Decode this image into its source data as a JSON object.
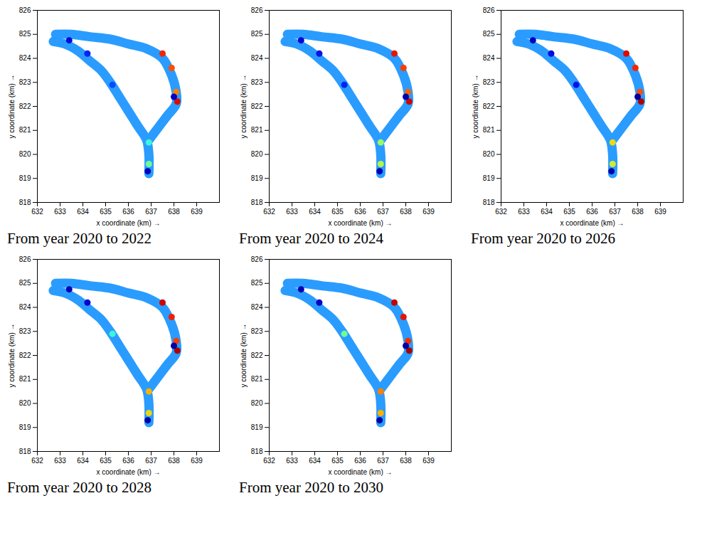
{
  "chart_data": [
    {
      "type": "heatmap",
      "title": "From year 2020 to 2022",
      "xlabel": "x coordinate (km) →",
      "ylabel": "y coordinate (km) →",
      "xlim": [
        632,
        640
      ],
      "ylim": [
        818,
        826
      ],
      "xticks": [
        632,
        633,
        634,
        635,
        636,
        637,
        638,
        639
      ],
      "yticks": [
        818,
        819,
        820,
        821,
        822,
        823,
        824,
        825,
        826
      ],
      "color_range": [
        0,
        1
      ],
      "channels": [
        {
          "x": [
            632.7,
            633.2,
            633.8,
            634.3,
            634.8,
            635.2,
            635.6,
            636.0,
            636.4,
            636.8,
            636.9,
            636.9
          ],
          "y": [
            824.7,
            824.6,
            824.3,
            823.9,
            823.5,
            823.0,
            822.4,
            821.8,
            821.2,
            820.6,
            820.0,
            819.2
          ],
          "value": 0.3
        },
        {
          "x": [
            632.8,
            633.5,
            634.3,
            635.2,
            636.0,
            636.8,
            637.5,
            637.9,
            638.1,
            638.1,
            637.7,
            637.3,
            636.9
          ],
          "y": [
            825.0,
            825.0,
            824.9,
            824.8,
            824.6,
            824.4,
            824.0,
            823.3,
            822.6,
            822.1,
            821.6,
            821.1,
            820.6
          ],
          "value": 0.3
        }
      ],
      "cells": {
        "x": [
          637.5,
          637.9,
          638.1,
          638.15,
          638.0,
          633.4,
          634.2,
          636.9,
          636.9,
          636.85,
          635.3
        ],
        "y": [
          824.2,
          823.6,
          822.6,
          822.2,
          822.4,
          824.75,
          824.2,
          820.5,
          819.6,
          819.3,
          822.9
        ],
        "values": [
          0.85,
          0.8,
          0.75,
          0.9,
          0.05,
          0.1,
          0.15,
          0.5,
          0.55,
          0.05,
          0.2
        ]
      }
    },
    {
      "type": "heatmap",
      "title": "From year 2020 to 2024",
      "xlabel": "x coordinate (km) →",
      "ylabel": "y coordinate (km) →",
      "xlim": [
        632,
        640
      ],
      "ylim": [
        818,
        826
      ],
      "xticks": [
        632,
        633,
        634,
        635,
        636,
        637,
        638,
        639
      ],
      "yticks": [
        818,
        819,
        820,
        821,
        822,
        823,
        824,
        825,
        826
      ],
      "color_range": [
        0,
        1
      ],
      "channels": [
        {
          "x": [
            632.7,
            633.2,
            633.8,
            634.3,
            634.8,
            635.2,
            635.6,
            636.0,
            636.4,
            636.8,
            636.9,
            636.9
          ],
          "y": [
            824.7,
            824.6,
            824.3,
            823.9,
            823.5,
            823.0,
            822.4,
            821.8,
            821.2,
            820.6,
            820.0,
            819.2
          ],
          "value": 0.3
        },
        {
          "x": [
            632.8,
            633.5,
            634.3,
            635.2,
            636.0,
            636.8,
            637.5,
            637.9,
            638.1,
            638.1,
            637.7,
            637.3,
            636.9
          ],
          "y": [
            825.0,
            825.0,
            824.9,
            824.8,
            824.6,
            824.4,
            824.0,
            823.3,
            822.6,
            822.1,
            821.6,
            821.1,
            820.6
          ],
          "value": 0.3
        }
      ],
      "cells": {
        "x": [
          637.5,
          637.9,
          638.1,
          638.15,
          638.0,
          633.4,
          634.2,
          636.9,
          636.9,
          636.85,
          635.3
        ],
        "y": [
          824.2,
          823.6,
          822.6,
          822.2,
          822.4,
          824.75,
          824.2,
          820.5,
          819.6,
          819.3,
          822.9
        ],
        "values": [
          0.88,
          0.82,
          0.78,
          0.92,
          0.03,
          0.08,
          0.12,
          0.58,
          0.6,
          0.04,
          0.15
        ]
      }
    },
    {
      "type": "heatmap",
      "title": "From year 2020 to 2026",
      "xlabel": "x coordinate (km) →",
      "ylabel": "y coordinate (km) →",
      "xlim": [
        632,
        640
      ],
      "ylim": [
        818,
        826
      ],
      "xticks": [
        632,
        633,
        634,
        635,
        636,
        637,
        638,
        639
      ],
      "yticks": [
        818,
        819,
        820,
        821,
        822,
        823,
        824,
        825,
        826
      ],
      "color_range": [
        0,
        1
      ],
      "channels": [
        {
          "x": [
            632.7,
            633.2,
            633.8,
            634.3,
            634.8,
            635.2,
            635.6,
            636.0,
            636.4,
            636.8,
            636.9,
            636.9
          ],
          "y": [
            824.7,
            824.6,
            824.3,
            823.9,
            823.5,
            823.0,
            822.4,
            821.8,
            821.2,
            820.6,
            820.0,
            819.2
          ],
          "value": 0.3
        },
        {
          "x": [
            632.8,
            633.5,
            634.3,
            635.2,
            636.0,
            636.8,
            637.5,
            637.9,
            638.1,
            638.1,
            637.7,
            637.3,
            636.9
          ],
          "y": [
            825.0,
            825.0,
            824.9,
            824.8,
            824.6,
            824.4,
            824.0,
            823.3,
            822.6,
            822.1,
            821.6,
            821.1,
            820.6
          ],
          "value": 0.3
        }
      ],
      "cells": {
        "x": [
          637.5,
          637.9,
          638.1,
          638.15,
          638.0,
          633.4,
          634.2,
          636.9,
          636.9,
          636.85,
          635.3
        ],
        "y": [
          824.2,
          823.6,
          822.6,
          822.2,
          822.4,
          824.75,
          824.2,
          820.5,
          819.6,
          819.3,
          822.9
        ],
        "values": [
          0.9,
          0.85,
          0.8,
          0.95,
          0.02,
          0.06,
          0.1,
          0.65,
          0.62,
          0.03,
          0.12
        ]
      }
    },
    {
      "type": "heatmap",
      "title": "From year 2020 to 2028",
      "xlabel": "x coordinate (km) →",
      "ylabel": "y coordinate (km) →",
      "xlim": [
        632,
        640
      ],
      "ylim": [
        818,
        826
      ],
      "xticks": [
        632,
        633,
        634,
        635,
        636,
        637,
        638,
        639
      ],
      "yticks": [
        818,
        819,
        820,
        821,
        822,
        823,
        824,
        825,
        826
      ],
      "color_range": [
        0,
        1
      ],
      "channels": [
        {
          "x": [
            632.7,
            633.2,
            633.8,
            634.3,
            634.8,
            635.2,
            635.6,
            636.0,
            636.4,
            636.8,
            636.9,
            636.9
          ],
          "y": [
            824.7,
            824.6,
            824.3,
            823.9,
            823.5,
            823.0,
            822.4,
            821.8,
            821.2,
            820.6,
            820.0,
            819.2
          ],
          "value": 0.3
        },
        {
          "x": [
            632.8,
            633.5,
            634.3,
            635.2,
            636.0,
            636.8,
            637.5,
            637.9,
            638.1,
            638.1,
            637.7,
            637.3,
            636.9
          ],
          "y": [
            825.0,
            825.0,
            824.9,
            824.8,
            824.6,
            824.4,
            824.0,
            823.3,
            822.6,
            822.1,
            821.6,
            821.1,
            820.6
          ],
          "value": 0.3
        }
      ],
      "cells": {
        "x": [
          637.5,
          637.9,
          638.1,
          638.15,
          638.0,
          633.4,
          634.2,
          636.9,
          636.9,
          636.85,
          635.3
        ],
        "y": [
          824.2,
          823.6,
          822.6,
          822.2,
          822.4,
          824.75,
          824.2,
          820.5,
          819.6,
          819.3,
          822.9
        ],
        "values": [
          0.92,
          0.86,
          0.82,
          0.95,
          0.02,
          0.05,
          0.08,
          0.7,
          0.66,
          0.02,
          0.5
        ]
      }
    },
    {
      "type": "heatmap",
      "title": "From year 2020 to 2030",
      "xlabel": "x coordinate (km) →",
      "ylabel": "y coordinate (km) →",
      "xlim": [
        632,
        640
      ],
      "ylim": [
        818,
        826
      ],
      "xticks": [
        632,
        633,
        634,
        635,
        636,
        637,
        638,
        639
      ],
      "yticks": [
        818,
        819,
        820,
        821,
        822,
        823,
        824,
        825,
        826
      ],
      "color_range": [
        0,
        1
      ],
      "channels": [
        {
          "x": [
            632.7,
            633.2,
            633.8,
            634.3,
            634.8,
            635.2,
            635.6,
            636.0,
            636.4,
            636.8,
            636.9,
            636.9
          ],
          "y": [
            824.7,
            824.6,
            824.3,
            823.9,
            823.5,
            823.0,
            822.4,
            821.8,
            821.2,
            820.6,
            820.0,
            819.2
          ],
          "value": 0.3
        },
        {
          "x": [
            632.8,
            633.5,
            634.3,
            635.2,
            636.0,
            636.8,
            637.5,
            637.9,
            638.1,
            638.1,
            637.7,
            637.3,
            636.9
          ],
          "y": [
            825.0,
            825.0,
            824.9,
            824.8,
            824.6,
            824.4,
            824.0,
            823.3,
            822.6,
            822.1,
            821.6,
            821.1,
            820.6
          ],
          "value": 0.3
        }
      ],
      "cells": {
        "x": [
          637.5,
          637.9,
          638.1,
          638.15,
          638.0,
          633.4,
          634.2,
          636.9,
          636.9,
          636.85,
          635.3
        ],
        "y": [
          824.2,
          823.6,
          822.6,
          822.2,
          822.4,
          824.75,
          824.2,
          820.5,
          819.6,
          819.3,
          822.9
        ],
        "values": [
          0.93,
          0.88,
          0.84,
          0.96,
          0.02,
          0.04,
          0.06,
          0.75,
          0.7,
          0.02,
          0.55
        ]
      }
    }
  ]
}
